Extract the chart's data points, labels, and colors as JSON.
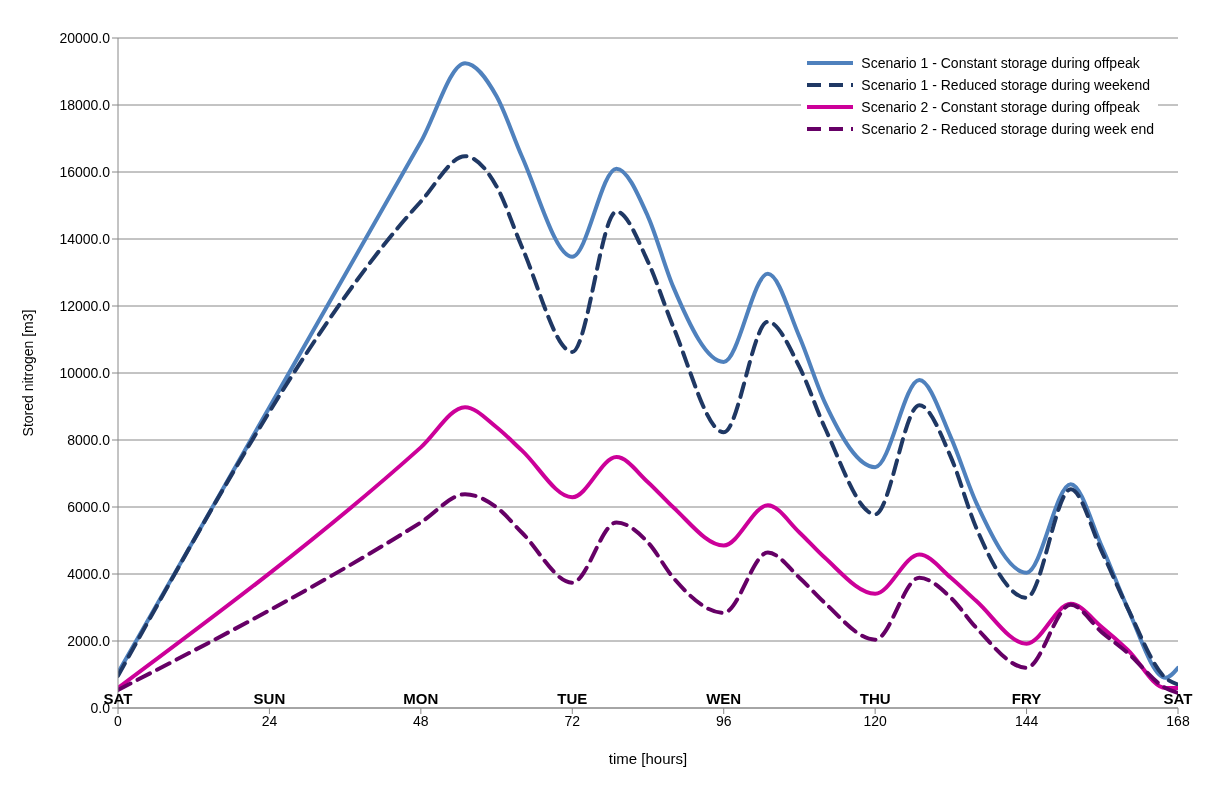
{
  "chart_data": {
    "type": "line",
    "xlabel": "time     [hours]",
    "ylabel": "Stored nitrogen   [m3]",
    "x": [
      0,
      48,
      55,
      60,
      64,
      72,
      79,
      84,
      88,
      96,
      103,
      108,
      112,
      120,
      127,
      132,
      136,
      144,
      151,
      156,
      160,
      166,
      168
    ],
    "series": [
      {
        "name": "Scenario 1 - Constant storage during offpeak",
        "color": "#4f81bd",
        "line_style": "solid",
        "values": [
          1050,
          16900,
          19250,
          18260,
          16470,
          13470,
          16100,
          14670,
          12570,
          10330,
          12960,
          11080,
          9130,
          7190,
          9790,
          8080,
          6140,
          4040,
          6680,
          4790,
          2990,
          900,
          1200
        ]
      },
      {
        "name": "Scenario 1 - Reduced storage during weekend",
        "color": "#1f3864",
        "line_style": "dashed",
        "values": [
          960,
          15120,
          16470,
          15570,
          13770,
          10630,
          14820,
          13320,
          11380,
          8230,
          11530,
          10180,
          8380,
          5780,
          9040,
          7490,
          5390,
          3290,
          6530,
          4640,
          2990,
          900,
          700
        ]
      },
      {
        "name": "Scenario 2 - Constant storage during offpeak",
        "color": "#cc0099",
        "line_style": "solid",
        "values": [
          600,
          7780,
          8980,
          8380,
          7690,
          6290,
          7490,
          6740,
          5990,
          4850,
          6050,
          5240,
          4490,
          3410,
          4580,
          3890,
          3200,
          1920,
          3110,
          2400,
          1740,
          600,
          600
        ]
      },
      {
        "name": "Scenario 2 - Reduced storage during week end",
        "color": "#660066",
        "line_style": "dashed",
        "values": [
          540,
          5540,
          6380,
          5990,
          5240,
          3740,
          5540,
          4940,
          3890,
          2840,
          4640,
          3890,
          3140,
          2040,
          3890,
          3290,
          2400,
          1200,
          3080,
          2250,
          1650,
          600,
          450
        ]
      }
    ],
    "xlim": [
      0,
      168
    ],
    "xticks": [
      0,
      24,
      48,
      72,
      96,
      120,
      144,
      168
    ],
    "ylim": [
      0,
      20000
    ],
    "yticks": [
      {
        "value": 0,
        "label": "0.0"
      },
      {
        "value": 2000,
        "label": "2000.0"
      },
      {
        "value": 4000,
        "label": "4000.0"
      },
      {
        "value": 6000,
        "label": "6000.0"
      },
      {
        "value": 8000,
        "label": "8000.0"
      },
      {
        "value": 10000,
        "label": "10000.0"
      },
      {
        "value": 12000,
        "label": "12000.0"
      },
      {
        "value": 14000,
        "label": "14000.0"
      },
      {
        "value": 16000,
        "label": "16000.0"
      },
      {
        "value": 18000,
        "label": "18000.0"
      },
      {
        "value": 20000,
        "label": "20000.0"
      }
    ],
    "grid": "y",
    "legend": "top right",
    "marker": "none",
    "annotations": [
      "SAT",
      "SUN",
      "MON",
      "TUE",
      "WEN",
      "THU",
      "FRY",
      "SAT"
    ]
  }
}
